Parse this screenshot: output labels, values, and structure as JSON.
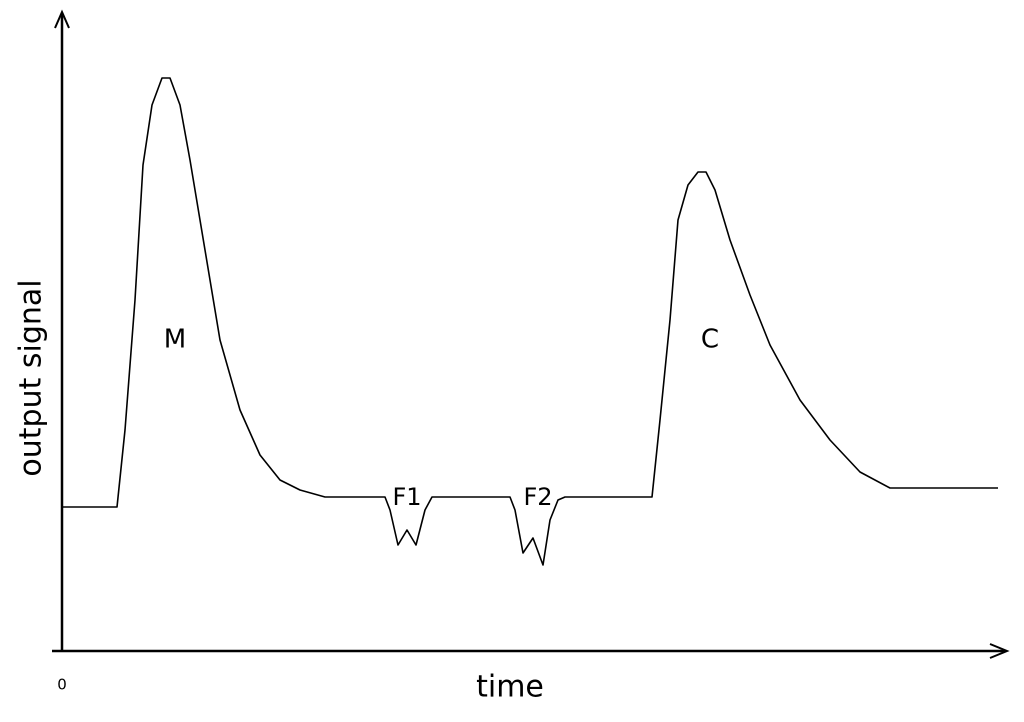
{
  "axes": {
    "x_label": "time",
    "y_label": "output signal",
    "origin": "0"
  },
  "peaks": [
    {
      "label": "M"
    },
    {
      "label": "F1"
    },
    {
      "label": "F2"
    },
    {
      "label": "C"
    }
  ]
}
